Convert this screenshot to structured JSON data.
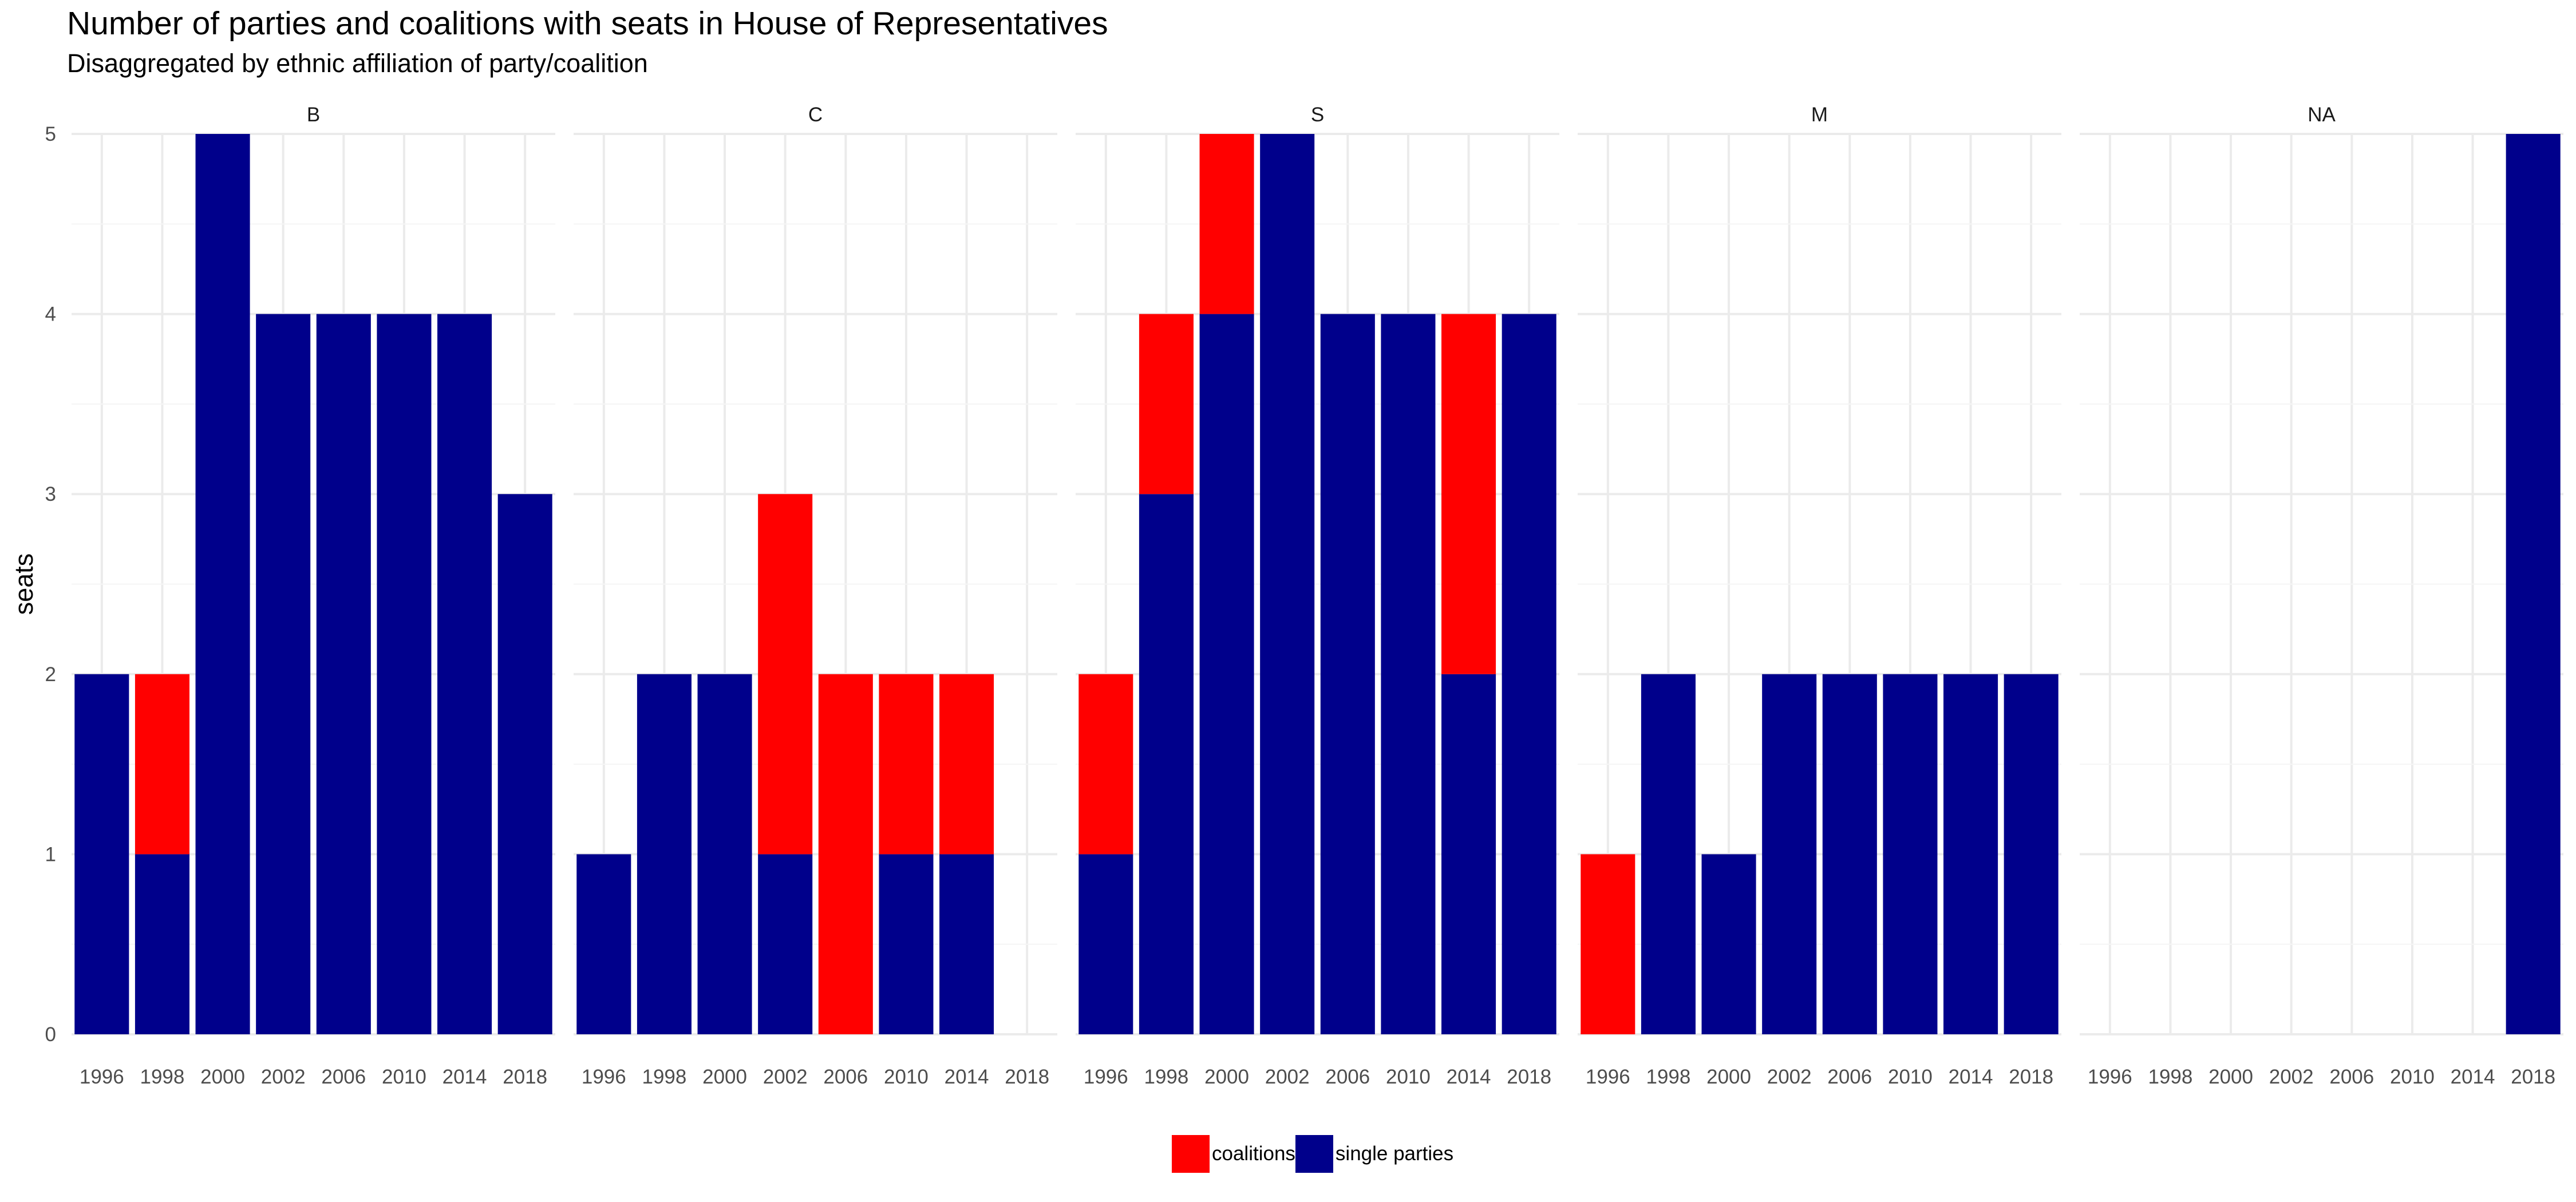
{
  "chart_data": {
    "type": "bar",
    "stacked": true,
    "title": "Number of parties and coalitions with seats in House of Representatives",
    "subtitle": "Disaggregated by ethnic affiliation of party/coalition",
    "ylabel": "seats",
    "xlabel": "",
    "ylim": [
      0,
      5
    ],
    "yticks": [
      "0",
      "1",
      "2",
      "3",
      "4",
      "5"
    ],
    "grid": true,
    "legend_position": "bottom",
    "categories": [
      "1996",
      "1998",
      "2000",
      "2002",
      "2006",
      "2010",
      "2014",
      "2018"
    ],
    "series": [
      {
        "name": "coalitions",
        "color": "#ff0000"
      },
      {
        "name": "single parties",
        "color": "#00008b"
      }
    ],
    "facets": [
      {
        "label": "B",
        "coalitions": [
          0,
          1,
          0,
          0,
          0,
          0,
          0,
          0
        ],
        "single_parties": [
          2,
          1,
          5,
          4,
          4,
          4,
          4,
          3
        ]
      },
      {
        "label": "C",
        "coalitions": [
          0,
          0,
          0,
          2,
          2,
          1,
          1,
          0
        ],
        "single_parties": [
          1,
          2,
          2,
          1,
          0,
          1,
          1,
          0
        ]
      },
      {
        "label": "S",
        "coalitions": [
          1,
          1,
          1,
          0,
          0,
          0,
          2,
          0
        ],
        "single_parties": [
          1,
          3,
          4,
          5,
          4,
          4,
          2,
          4
        ]
      },
      {
        "label": "M",
        "coalitions": [
          1,
          0,
          0,
          0,
          0,
          0,
          0,
          0
        ],
        "single_parties": [
          0,
          2,
          1,
          2,
          2,
          2,
          2,
          2
        ]
      },
      {
        "label": "NA",
        "coalitions": [
          0,
          0,
          0,
          0,
          0,
          0,
          0,
          0
        ],
        "single_parties": [
          0,
          0,
          0,
          0,
          0,
          0,
          0,
          5
        ]
      }
    ]
  }
}
